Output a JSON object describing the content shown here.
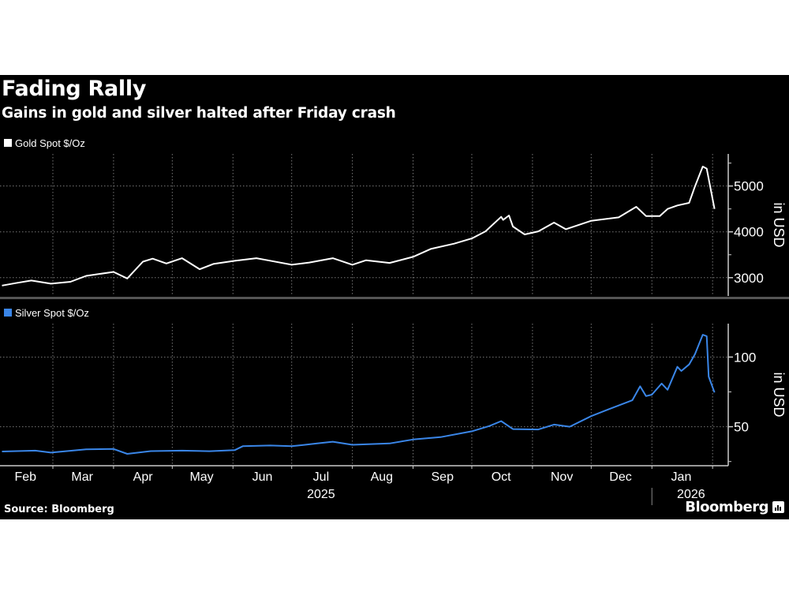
{
  "header": {
    "title": "Fading Rally",
    "subtitle": "Gains in gold and silver halted after Friday crash"
  },
  "footer": {
    "source": "Source: Bloomberg",
    "brand": "Bloomberg",
    "brand_icon": "bloomberg-chart-icon"
  },
  "chart_data": [
    {
      "type": "line",
      "legend": "Gold Spot $/Oz",
      "color": "#ffffff",
      "ylabel": "in USD",
      "yticks": [
        3000,
        4000,
        5000
      ],
      "ylim": [
        2600,
        5700
      ],
      "grid": true,
      "legend_placement": "top-left",
      "axis_side": "right",
      "points": [
        [
          "2025-02-03",
          2828
        ],
        [
          "2025-02-10",
          2880
        ],
        [
          "2025-02-18",
          2937
        ],
        [
          "2025-02-28",
          2868
        ],
        [
          "2025-03-10",
          2910
        ],
        [
          "2025-03-18",
          3040
        ],
        [
          "2025-04-01",
          3126
        ],
        [
          "2025-04-08",
          2983
        ],
        [
          "2025-04-16",
          3350
        ],
        [
          "2025-04-21",
          3414
        ],
        [
          "2025-04-28",
          3310
        ],
        [
          "2025-05-06",
          3425
        ],
        [
          "2025-05-15",
          3184
        ],
        [
          "2025-05-22",
          3300
        ],
        [
          "2025-06-02",
          3368
        ],
        [
          "2025-06-13",
          3425
        ],
        [
          "2025-06-20",
          3370
        ],
        [
          "2025-07-01",
          3282
        ],
        [
          "2025-07-10",
          3330
        ],
        [
          "2025-07-22",
          3425
        ],
        [
          "2025-08-01",
          3282
        ],
        [
          "2025-08-08",
          3380
        ],
        [
          "2025-08-20",
          3322
        ],
        [
          "2025-09-01",
          3454
        ],
        [
          "2025-09-10",
          3626
        ],
        [
          "2025-09-22",
          3741
        ],
        [
          "2025-10-01",
          3856
        ],
        [
          "2025-10-08",
          4011
        ],
        [
          "2025-10-16",
          4327
        ],
        [
          "2025-10-17",
          4260
        ],
        [
          "2025-10-20",
          4356
        ],
        [
          "2025-10-22",
          4115
        ],
        [
          "2025-10-28",
          3943
        ],
        [
          "2025-11-04",
          4011
        ],
        [
          "2025-11-12",
          4201
        ],
        [
          "2025-11-18",
          4057
        ],
        [
          "2025-12-01",
          4241
        ],
        [
          "2025-12-15",
          4316
        ],
        [
          "2025-12-24",
          4546
        ],
        [
          "2025-12-29",
          4345
        ],
        [
          "2026-01-05",
          4345
        ],
        [
          "2026-01-09",
          4500
        ],
        [
          "2026-01-14",
          4575
        ],
        [
          "2026-01-20",
          4632
        ],
        [
          "2026-01-23",
          4990
        ],
        [
          "2026-01-27",
          5425
        ],
        [
          "2026-01-29",
          5380
        ],
        [
          "2026-02-02",
          4500
        ]
      ]
    },
    {
      "type": "line",
      "legend": "Silver Spot $/Oz",
      "color": "#3a86e8",
      "ylabel": "in USD",
      "yticks": [
        50,
        100
      ],
      "ylim": [
        22,
        124
      ],
      "grid": true,
      "legend_placement": "top-left",
      "axis_side": "right",
      "points": [
        [
          "2025-02-03",
          32.2
        ],
        [
          "2025-02-20",
          32.8
        ],
        [
          "2025-02-28",
          31.4
        ],
        [
          "2025-03-18",
          33.8
        ],
        [
          "2025-04-01",
          34.0
        ],
        [
          "2025-04-08",
          30.5
        ],
        [
          "2025-04-20",
          32.5
        ],
        [
          "2025-05-06",
          32.8
        ],
        [
          "2025-05-20",
          32.4
        ],
        [
          "2025-06-02",
          33.2
        ],
        [
          "2025-06-06",
          36.0
        ],
        [
          "2025-06-20",
          36.5
        ],
        [
          "2025-07-01",
          36.0
        ],
        [
          "2025-07-14",
          38.0
        ],
        [
          "2025-07-22",
          39.2
        ],
        [
          "2025-08-01",
          37.0
        ],
        [
          "2025-08-20",
          38.0
        ],
        [
          "2025-09-01",
          40.8
        ],
        [
          "2025-09-15",
          42.5
        ],
        [
          "2025-10-01",
          46.7
        ],
        [
          "2025-10-10",
          50.5
        ],
        [
          "2025-10-16",
          54.0
        ],
        [
          "2025-10-22",
          48.3
        ],
        [
          "2025-11-04",
          48.0
        ],
        [
          "2025-11-12",
          51.5
        ],
        [
          "2025-11-20",
          50.0
        ],
        [
          "2025-12-01",
          57.6
        ],
        [
          "2025-12-10",
          62.6
        ],
        [
          "2025-12-22",
          69.0
        ],
        [
          "2025-12-26",
          79.0
        ],
        [
          "2025-12-29",
          72.0
        ],
        [
          "2026-01-01",
          73.0
        ],
        [
          "2026-01-06",
          81.0
        ],
        [
          "2026-01-09",
          76.5
        ],
        [
          "2026-01-14",
          93.0
        ],
        [
          "2026-01-16",
          90.0
        ],
        [
          "2026-01-20",
          94.7
        ],
        [
          "2026-01-23",
          102.0
        ],
        [
          "2026-01-27",
          116.0
        ],
        [
          "2026-01-29",
          115.0
        ],
        [
          "2026-01-30",
          86.0
        ],
        [
          "2026-02-02",
          74.6
        ]
      ]
    }
  ],
  "xaxis": {
    "months": [
      "Feb",
      "Mar",
      "Apr",
      "May",
      "Jun",
      "Jul",
      "Aug",
      "Sep",
      "Oct",
      "Nov",
      "Dec",
      "Jan"
    ],
    "years": [
      "2025",
      "2026"
    ],
    "range": [
      "2025-02-02",
      "2026-02-09"
    ]
  }
}
